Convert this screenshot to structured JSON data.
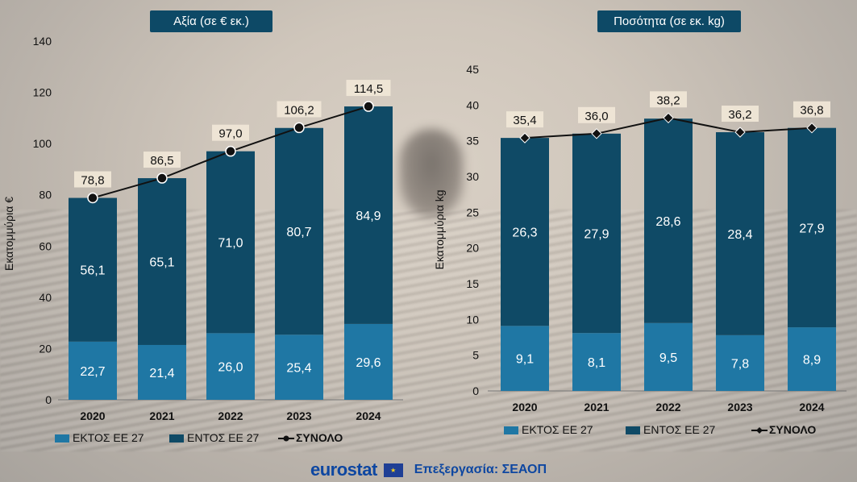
{
  "chart_data": [
    {
      "type": "bar",
      "title": "Αξία (σε € εκ.)",
      "ylabel": "Εκατομμύρια €",
      "ylim": [
        0,
        140
      ],
      "yticks": [
        0,
        20,
        40,
        60,
        80,
        100,
        120,
        140
      ],
      "categories": [
        "2020",
        "2021",
        "2022",
        "2023",
        "2024"
      ],
      "series": [
        {
          "name": "ΕΚΤΟΣ ΕΕ 27",
          "values": [
            22.7,
            21.4,
            26.0,
            25.4,
            29.6
          ],
          "labels": [
            "22,7",
            "21,4",
            "26,0",
            "25,4",
            "29,6"
          ],
          "color": "#1f77a4"
        },
        {
          "name": "ΕΝΤΟΣ ΕΕ 27",
          "values": [
            56.1,
            65.1,
            71.0,
            80.7,
            84.9
          ],
          "labels": [
            "56,1",
            "65,1",
            "71,0",
            "80,7",
            "84,9"
          ],
          "color": "#0f4a66"
        }
      ],
      "total": {
        "name": "ΣΥΝΟΛΟ",
        "values": [
          78.8,
          86.5,
          97.0,
          106.2,
          114.5
        ],
        "labels": [
          "78,8",
          "86,5",
          "97,0",
          "106,2",
          "114,5"
        ],
        "marker": "circle"
      },
      "legend": "bottom"
    },
    {
      "type": "bar",
      "title": "Ποσότητα (σε εκ. kg)",
      "ylabel": "Εκατομμύρια kg",
      "ylim": [
        0,
        45
      ],
      "yticks": [
        0,
        5,
        10,
        15,
        20,
        25,
        30,
        35,
        40,
        45
      ],
      "categories": [
        "2020",
        "2021",
        "2022",
        "2023",
        "2024"
      ],
      "series": [
        {
          "name": "ΕΚΤΟΣ ΕΕ 27",
          "values": [
            9.1,
            8.1,
            9.5,
            7.8,
            8.9
          ],
          "labels": [
            "9,1",
            "8,1",
            "9,5",
            "7,8",
            "8,9"
          ],
          "color": "#1f77a4"
        },
        {
          "name": "ΕΝΤΟΣ ΕΕ 27",
          "values": [
            26.3,
            27.9,
            28.6,
            28.4,
            27.9
          ],
          "labels": [
            "26,3",
            "27,9",
            "28,6",
            "28,4",
            "27,9"
          ],
          "color": "#0f4a66"
        }
      ],
      "total": {
        "name": "ΣΥΝΟΛΟ",
        "values": [
          35.4,
          36.0,
          38.2,
          36.2,
          36.8
        ],
        "labels": [
          "35,4",
          "36,0",
          "38,2",
          "36,2",
          "36,8"
        ],
        "marker": "diamond"
      },
      "legend": "bottom"
    }
  ],
  "footer": {
    "logo_text": "eurostat",
    "credit": "Επεξεργασία: ΣΕΑΟΠ"
  }
}
